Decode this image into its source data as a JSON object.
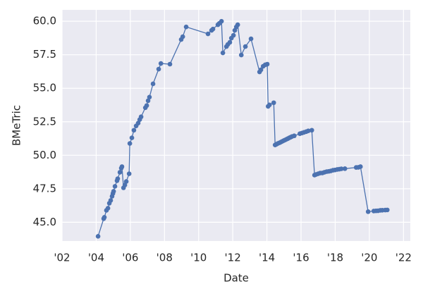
{
  "chart_data": {
    "type": "line",
    "x_label": "Date",
    "y_label": "BMeTric",
    "color": "#4c72b0",
    "grid": true,
    "xlim": [
      2002,
      2022.4
    ],
    "ylim": [
      43.6,
      60.85
    ],
    "xticks": [
      {
        "value": 2002,
        "label": "'02"
      },
      {
        "value": 2004,
        "label": "'04"
      },
      {
        "value": 2006,
        "label": "'06"
      },
      {
        "value": 2008,
        "label": "'08"
      },
      {
        "value": 2010,
        "label": "'10"
      },
      {
        "value": 2012,
        "label": "'12"
      },
      {
        "value": 2014,
        "label": "'14"
      },
      {
        "value": 2016,
        "label": "'16"
      },
      {
        "value": 2018,
        "label": "'18"
      },
      {
        "value": 2020,
        "label": "'20"
      },
      {
        "value": 2022,
        "label": "'22"
      }
    ],
    "yticks": [
      {
        "value": 45,
        "label": "45.0"
      },
      47.5,
      {
        "value": 50,
        "label": "50.0"
      },
      52.5,
      {
        "value": 55,
        "label": "55.0"
      },
      57.5,
      {
        "value": 60,
        "label": "60.0"
      }
    ],
    "x": [
      2004.11,
      2004.44,
      2004.48,
      2004.6,
      2004.69,
      2004.77,
      2004.85,
      2004.93,
      2004.98,
      2005.02,
      2005.1,
      2005.22,
      2005.26,
      2005.39,
      2005.47,
      2005.51,
      2005.6,
      2005.68,
      2005.76,
      2005.93,
      2005.97,
      2006.09,
      2006.21,
      2006.34,
      2006.46,
      2006.55,
      2006.63,
      2006.88,
      2006.96,
      2007.04,
      2007.12,
      2007.33,
      2007.66,
      2007.79,
      2008.32,
      2008.98,
      2009.07,
      2009.27,
      2010.55,
      2010.76,
      2010.84,
      2011.13,
      2011.21,
      2011.34,
      2011.42,
      2011.63,
      2011.71,
      2011.83,
      2011.92,
      2012.04,
      2012.12,
      2012.21,
      2012.29,
      2012.5,
      2012.74,
      2013.07,
      2013.57,
      2013.65,
      2013.78,
      2013.9,
      2014.02,
      2014.07,
      2014.15,
      2014.4,
      2014.48,
      2014.56,
      2014.64,
      2014.73,
      2014.81,
      2014.89,
      2014.98,
      2015.06,
      2015.14,
      2015.22,
      2015.31,
      2015.39,
      2015.47,
      2015.6,
      2015.93,
      2016.05,
      2016.17,
      2016.3,
      2016.42,
      2016.63,
      2016.79,
      2016.88,
      2017.0,
      2017.12,
      2017.25,
      2017.37,
      2017.5,
      2017.62,
      2017.74,
      2017.87,
      2017.99,
      2018.12,
      2018.24,
      2018.36,
      2018.57,
      2019.23,
      2019.36,
      2019.48,
      2019.93,
      2020.26,
      2020.39,
      2020.51,
      2020.64,
      2020.76,
      2020.93,
      2021.05
    ],
    "values": [
      43.95,
      45.27,
      45.37,
      45.89,
      46.05,
      46.42,
      46.63,
      46.94,
      47.15,
      47.31,
      47.68,
      48.1,
      48.25,
      48.73,
      49.04,
      49.15,
      47.57,
      47.78,
      48.04,
      48.62,
      50.88,
      51.3,
      51.87,
      52.19,
      52.4,
      52.66,
      52.87,
      53.55,
      53.71,
      54.07,
      54.34,
      55.33,
      56.43,
      56.85,
      56.8,
      58.64,
      58.85,
      59.58,
      59.06,
      59.32,
      59.42,
      59.74,
      59.84,
      60.0,
      57.64,
      58.11,
      58.27,
      58.43,
      58.74,
      58.95,
      59.32,
      59.58,
      59.74,
      57.48,
      58.11,
      58.69,
      56.22,
      56.38,
      56.64,
      56.75,
      56.8,
      53.65,
      53.76,
      53.92,
      50.77,
      50.82,
      50.88,
      50.93,
      50.98,
      51.03,
      51.09,
      51.14,
      51.19,
      51.24,
      51.3,
      51.35,
      51.4,
      51.45,
      51.61,
      51.66,
      51.71,
      51.76,
      51.82,
      51.87,
      48.52,
      48.57,
      48.62,
      48.67,
      48.68,
      48.73,
      48.78,
      48.8,
      48.83,
      48.88,
      48.9,
      48.94,
      48.96,
      48.99,
      49.0,
      49.09,
      49.1,
      49.15,
      45.79,
      45.84,
      45.85,
      45.86,
      45.89,
      45.9,
      45.91,
      45.92
    ]
  }
}
